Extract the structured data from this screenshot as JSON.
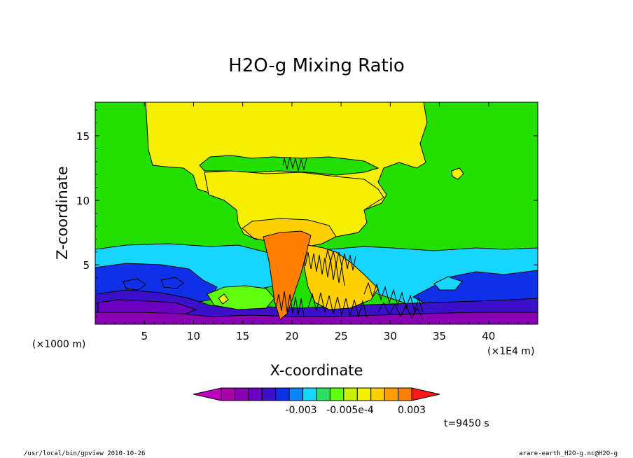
{
  "chart_data": {
    "type": "heatmap",
    "title": "H2O-g Mixing Ratio",
    "xlabel": "X-coordinate",
    "ylabel": "Z-coordinate",
    "x_units_left": "(×1000 m)",
    "x_units_right": "(×1E4 m)",
    "xlim": [
      0,
      45
    ],
    "ylim": [
      0.4,
      17.6
    ],
    "x_ticks": [
      "5",
      "10",
      "15",
      "20",
      "25",
      "30",
      "35",
      "40"
    ],
    "y_ticks": [
      "5",
      "10",
      "15"
    ],
    "colorbar": {
      "colors": [
        "#c000c0",
        "#aa00aa",
        "#8a00b4",
        "#6a00c0",
        "#3a10c8",
        "#1030e8",
        "#0a84ff",
        "#16d6ff",
        "#2ae060",
        "#60ff10",
        "#c8f000",
        "#f4f000",
        "#ffd000",
        "#ffa000",
        "#ff8000",
        "#ff1818"
      ],
      "tick_labels": [
        "-0.003",
        "-0.005e-4",
        "0.003"
      ]
    },
    "time_label": "t=9450 s",
    "background_color": "#22e000",
    "sky_color": "#22e000"
  },
  "footer": {
    "left": "/usr/local/bin/gpview   2010-10-26",
    "right": "arare-earth_H2O-g.nc@H2O-g"
  }
}
